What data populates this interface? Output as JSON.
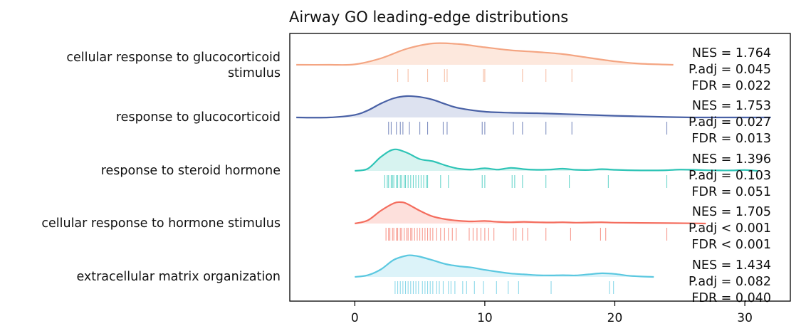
{
  "chart_data": {
    "type": "ridgeline",
    "title": "Airway GO leading-edge distributions",
    "xlabel": "",
    "ylabel": "",
    "xlim": [
      -5,
      33.5
    ],
    "xticks": [
      0,
      10,
      20,
      30
    ],
    "grid": false,
    "legend": "none",
    "series": [
      {
        "label_lines": [
          "cellular response to glucocorticoid",
          "stimulus"
        ],
        "color": "#f4a582",
        "fill": "#fde8dd",
        "density_x": [
          -4.5,
          -2,
          0,
          2,
          4,
          6,
          8,
          10,
          12,
          14,
          16,
          18,
          20,
          22,
          24.5
        ],
        "density_y": [
          0.0,
          0.0,
          0.02,
          0.3,
          0.75,
          1.0,
          0.97,
          0.82,
          0.68,
          0.6,
          0.5,
          0.33,
          0.16,
          0.05,
          0.0
        ],
        "ticks": [
          3.3,
          4.1,
          5.6,
          6.9,
          7.1,
          9.9,
          10.0,
          12.9,
          14.7,
          16.7
        ],
        "stats": [
          "NES = 1.764",
          "P.adj = 0.045",
          "FDR = 0.022"
        ]
      },
      {
        "label_lines": [
          "response to glucocorticoid"
        ],
        "color": "#4860a5",
        "fill": "#dde2f0",
        "density_x": [
          -4.5,
          -2,
          0,
          1,
          2,
          3,
          4,
          5,
          6,
          7,
          8,
          10,
          12,
          14,
          16,
          18,
          20,
          22,
          24,
          26,
          28,
          30,
          32
        ],
        "density_y": [
          0.0,
          0.0,
          0.12,
          0.33,
          0.65,
          0.9,
          1.0,
          0.96,
          0.83,
          0.62,
          0.44,
          0.27,
          0.22,
          0.2,
          0.16,
          0.12,
          0.08,
          0.05,
          0.02,
          0.0,
          0.0,
          0.0,
          0.0
        ],
        "ticks": [
          2.6,
          2.8,
          3.2,
          3.5,
          3.7,
          4.2,
          5.0,
          5.6,
          6.8,
          7.1,
          9.8,
          10.0,
          12.2,
          12.9,
          14.7,
          16.7,
          24.0
        ],
        "stats": [
          "NES = 1.753",
          "P.adj = 0.027",
          "FDR = 0.013"
        ]
      },
      {
        "label_lines": [
          "response to steroid hormone"
        ],
        "color": "#2ec4b6",
        "fill": "#d7f3f0",
        "density_x": [
          0,
          1,
          2,
          3,
          4,
          5,
          6,
          7,
          8,
          9,
          10,
          11,
          12,
          13,
          14,
          15,
          16,
          17,
          18,
          19,
          20,
          21,
          22,
          23,
          24,
          25,
          26,
          27,
          28,
          29,
          30,
          31
        ],
        "density_y": [
          0.0,
          0.1,
          0.65,
          1.0,
          0.85,
          0.55,
          0.45,
          0.25,
          0.1,
          0.06,
          0.12,
          0.06,
          0.14,
          0.08,
          0.05,
          0.06,
          0.1,
          0.05,
          0.04,
          0.08,
          0.05,
          0.03,
          0.02,
          0.02,
          0.03,
          0.06,
          0.05,
          0.03,
          0.02,
          0.02,
          0.04,
          0.0
        ],
        "ticks": [
          2.3,
          2.5,
          2.6,
          2.8,
          2.9,
          3.0,
          3.2,
          3.3,
          3.5,
          3.6,
          3.8,
          3.9,
          4.1,
          4.3,
          4.5,
          4.7,
          4.9,
          5.1,
          5.3,
          5.5,
          5.6,
          6.6,
          7.2,
          9.8,
          10.0,
          12.1,
          12.3,
          12.9,
          14.7,
          16.5,
          19.5,
          24.0
        ],
        "stats": [
          "NES = 1.396",
          "P.adj = 0.103",
          "FDR = 0.051"
        ]
      },
      {
        "label_lines": [
          "cellular response to hormone stimulus"
        ],
        "color": "#f46d5e",
        "fill": "#fde0dc",
        "density_x": [
          0,
          1,
          2,
          3,
          3.5,
          4,
          5,
          6,
          7,
          8,
          9,
          10,
          11,
          12,
          13,
          14,
          15,
          16,
          17,
          18,
          19,
          20,
          22,
          24,
          26,
          27
        ],
        "density_y": [
          0.0,
          0.15,
          0.6,
          0.95,
          1.0,
          0.93,
          0.6,
          0.33,
          0.2,
          0.13,
          0.1,
          0.12,
          0.08,
          0.06,
          0.08,
          0.06,
          0.05,
          0.06,
          0.04,
          0.05,
          0.06,
          0.04,
          0.03,
          0.02,
          0.01,
          0.0
        ],
        "ticks": [
          2.4,
          2.6,
          2.7,
          2.9,
          3.0,
          3.2,
          3.3,
          3.5,
          3.6,
          3.8,
          4.0,
          4.1,
          4.3,
          4.4,
          4.6,
          4.8,
          5.0,
          5.2,
          5.4,
          5.6,
          5.8,
          6.0,
          6.3,
          6.6,
          6.9,
          7.2,
          7.5,
          7.8,
          8.8,
          9.1,
          9.4,
          9.7,
          10.0,
          10.3,
          10.7,
          12.2,
          12.4,
          12.9,
          13.3,
          14.7,
          16.6,
          18.9,
          19.3,
          24.0
        ],
        "stats": [
          "NES = 1.705",
          "P.adj < 0.001",
          "FDR < 0.001"
        ]
      },
      {
        "label_lines": [
          "extracellular matrix organization"
        ],
        "color": "#5bc8e0",
        "fill": "#dcf3f9",
        "density_x": [
          0,
          1,
          2,
          3,
          4,
          4.5,
          5,
          6,
          7,
          8,
          9,
          10,
          11,
          12,
          13,
          14,
          15,
          16,
          17,
          18,
          19,
          20,
          21,
          22,
          23
        ],
        "density_y": [
          0.0,
          0.08,
          0.35,
          0.8,
          1.0,
          1.0,
          0.95,
          0.78,
          0.6,
          0.5,
          0.44,
          0.33,
          0.24,
          0.16,
          0.12,
          0.08,
          0.07,
          0.08,
          0.07,
          0.12,
          0.17,
          0.14,
          0.06,
          0.02,
          0.0
        ],
        "ticks": [
          3.1,
          3.3,
          3.5,
          3.7,
          3.9,
          4.1,
          4.3,
          4.5,
          4.7,
          4.9,
          5.2,
          5.4,
          5.6,
          5.8,
          6.0,
          6.3,
          6.5,
          6.8,
          7.2,
          7.4,
          7.7,
          8.3,
          8.6,
          9.2,
          9.9,
          10.9,
          11.8,
          12.6,
          15.1,
          19.6,
          19.9
        ],
        "stats": [
          "NES = 1.434",
          "P.adj = 0.082",
          "FDR = 0.040"
        ]
      }
    ]
  }
}
